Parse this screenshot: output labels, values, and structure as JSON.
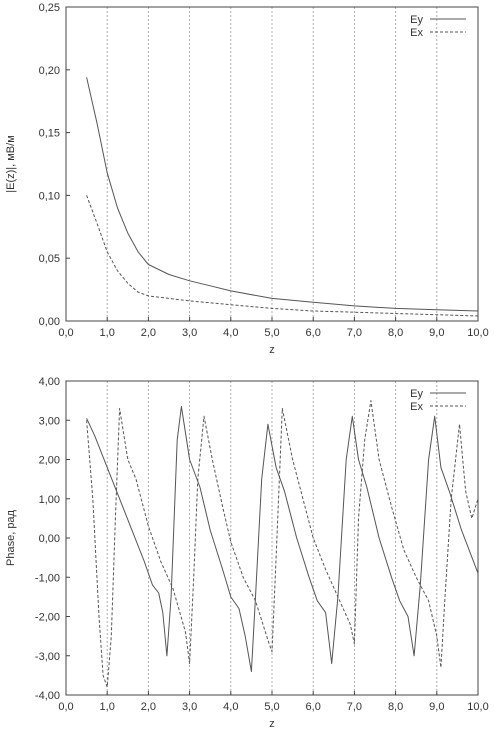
{
  "chart_data": [
    {
      "type": "line",
      "title": "",
      "xlabel": "z",
      "ylabel": "|E(z)|, мВ/м",
      "xlim": [
        0,
        10
      ],
      "ylim": [
        0,
        0.25
      ],
      "x_ticks": [
        "0,0",
        "1,0",
        "2,0",
        "3,0",
        "4,0",
        "5,0",
        "6,0",
        "7,0",
        "8,0",
        "9,0",
        "10,0"
      ],
      "y_ticks": [
        "0,00",
        "0,05",
        "0,10",
        "0,15",
        "0,20",
        "0,25"
      ],
      "grid": "vertical dashed",
      "legend_position": "top-right",
      "series": [
        {
          "name": "Ey",
          "style": "solid",
          "color": "#555555",
          "x": [
            0.5,
            0.75,
            1.0,
            1.25,
            1.5,
            1.75,
            2.0,
            2.5,
            3.0,
            3.5,
            4.0,
            5.0,
            6.0,
            7.0,
            8.0,
            9.0,
            10.0
          ],
          "y": [
            0.194,
            0.158,
            0.118,
            0.09,
            0.07,
            0.055,
            0.045,
            0.037,
            0.032,
            0.028,
            0.024,
            0.018,
            0.015,
            0.012,
            0.01,
            0.009,
            0.008
          ]
        },
        {
          "name": "Ex",
          "style": "dashed",
          "color": "#555555",
          "x": [
            0.5,
            0.75,
            1.0,
            1.25,
            1.5,
            1.75,
            2.0,
            2.5,
            3.0,
            4.0,
            5.0,
            6.0,
            7.0,
            8.0,
            9.0,
            10.0
          ],
          "y": [
            0.1,
            0.078,
            0.055,
            0.04,
            0.03,
            0.023,
            0.02,
            0.018,
            0.016,
            0.013,
            0.01,
            0.008,
            0.007,
            0.006,
            0.005,
            0.004
          ]
        }
      ]
    },
    {
      "type": "line",
      "title": "",
      "xlabel": "z",
      "ylabel": "Phase, рад",
      "xlim": [
        0,
        10
      ],
      "ylim": [
        -4,
        4
      ],
      "x_ticks": [
        "0,0",
        "1,0",
        "2,0",
        "3,0",
        "4,0",
        "5,0",
        "6,0",
        "7,0",
        "8,0",
        "9,0",
        "10,0"
      ],
      "y_ticks": [
        "4,00",
        "3,00",
        "2,00",
        "1,00",
        "0,00",
        "-1,00",
        "-2,00",
        "-3,00",
        "-4,00"
      ],
      "grid": "vertical dashed",
      "legend_position": "top-right",
      "series": [
        {
          "name": "Ey",
          "style": "solid",
          "color": "#555555",
          "x": [
            0.5,
            0.7,
            1.0,
            1.3,
            1.6,
            1.9,
            2.1,
            2.25,
            2.35,
            2.45,
            2.55,
            2.7,
            2.8,
            3.0,
            3.25,
            3.5,
            3.8,
            4.0,
            4.2,
            4.35,
            4.5,
            4.6,
            4.75,
            4.9,
            5.1,
            5.3,
            5.6,
            5.9,
            6.1,
            6.3,
            6.45,
            6.6,
            6.8,
            6.95,
            7.1,
            7.3,
            7.6,
            7.9,
            8.1,
            8.3,
            8.45,
            8.6,
            8.8,
            8.95,
            9.1,
            9.3,
            9.6,
            10.0
          ],
          "y": [
            3.05,
            2.6,
            1.8,
            1.0,
            0.2,
            -0.6,
            -1.2,
            -1.4,
            -1.9,
            -3.0,
            -1.5,
            2.5,
            3.35,
            2.0,
            1.3,
            0.2,
            -0.8,
            -1.5,
            -1.8,
            -2.5,
            -3.4,
            -1.5,
            1.5,
            2.9,
            1.8,
            1.2,
            0.0,
            -1.0,
            -1.6,
            -1.9,
            -3.2,
            -1.5,
            2.0,
            3.1,
            2.0,
            1.3,
            0.0,
            -1.0,
            -1.6,
            -2.0,
            -3.0,
            -1.2,
            2.0,
            3.1,
            1.8,
            1.2,
            0.2,
            -0.9
          ]
        },
        {
          "name": "Ex",
          "style": "dashed",
          "color": "#555555",
          "x": [
            0.5,
            0.65,
            0.8,
            0.9,
            1.0,
            1.1,
            1.2,
            1.3,
            1.5,
            1.7,
            2.0,
            2.3,
            2.6,
            2.9,
            3.0,
            3.1,
            3.2,
            3.35,
            3.55,
            3.8,
            4.0,
            4.3,
            4.6,
            4.9,
            5.0,
            5.1,
            5.25,
            5.5,
            5.8,
            6.0,
            6.3,
            6.6,
            6.9,
            7.0,
            7.1,
            7.25,
            7.4,
            7.6,
            7.9,
            8.2,
            8.5,
            8.8,
            9.0,
            9.1,
            9.2,
            9.35,
            9.55,
            9.7,
            9.85,
            10.0
          ],
          "y": [
            3.0,
            1.0,
            -2.0,
            -3.5,
            -3.8,
            -2.5,
            0.5,
            3.3,
            2.0,
            1.5,
            0.3,
            -0.6,
            -1.3,
            -2.4,
            -3.2,
            -1.0,
            1.5,
            3.1,
            2.0,
            0.8,
            -0.1,
            -1.0,
            -1.6,
            -2.6,
            -2.9,
            -0.5,
            3.3,
            2.0,
            0.8,
            0.0,
            -0.8,
            -1.5,
            -2.2,
            -2.7,
            0.5,
            2.5,
            3.5,
            2.0,
            0.8,
            -0.3,
            -1.0,
            -1.6,
            -2.5,
            -3.3,
            -1.5,
            1.0,
            2.9,
            1.2,
            0.5,
            1.0
          ]
        }
      ]
    }
  ]
}
